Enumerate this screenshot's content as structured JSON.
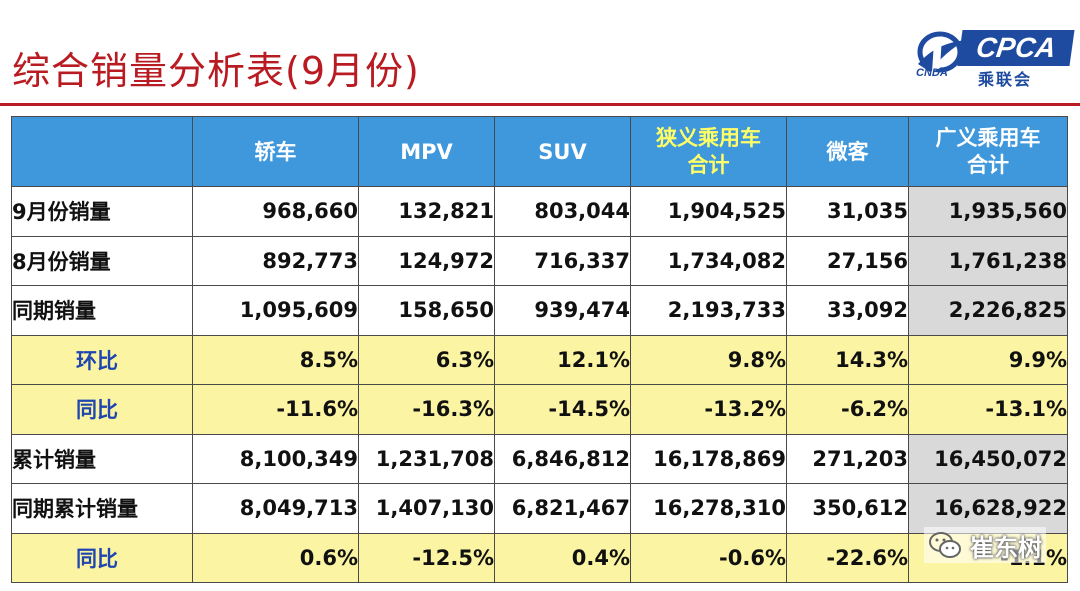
{
  "title": "综合销量分析表(9月份)",
  "logo": {
    "brand": "CPCA",
    "chinese": "乘联会",
    "emblem_text": "CNDA",
    "emblem_icon": "wing-emblem-icon"
  },
  "colors": {
    "title": "#b81c22",
    "header_bg": "#3f97dc",
    "header_highlight": "#ffff66",
    "ratio_row_bg": "#fbf4a2",
    "ratio_label": "#1f45b0",
    "grey_col": "#d9d9d9",
    "logo_blue": "#1e4aa0"
  },
  "table": {
    "headers": [
      "",
      "轿车",
      "MPV",
      "SUV",
      "狭义乘用车\n合计",
      "微客",
      "广义乘用车\n合计"
    ],
    "rows": [
      {
        "label": "9月份销量",
        "type": "volume",
        "values": [
          "968,660",
          "132,821",
          "803,044",
          "1,904,525",
          "31,035",
          "1,935,560"
        ]
      },
      {
        "label": "8月份销量",
        "type": "volume",
        "values": [
          "892,773",
          "124,972",
          "716,337",
          "1,734,082",
          "27,156",
          "1,761,238"
        ]
      },
      {
        "label": "同期销量",
        "type": "volume",
        "values": [
          "1,095,609",
          "158,650",
          "939,474",
          "2,193,733",
          "33,092",
          "2,226,825"
        ]
      },
      {
        "label": "环比",
        "type": "ratio",
        "values": [
          "8.5%",
          "6.3%",
          "12.1%",
          "9.8%",
          "14.3%",
          "9.9%"
        ]
      },
      {
        "label": "同比",
        "type": "ratio",
        "values": [
          "-11.6%",
          "-16.3%",
          "-14.5%",
          "-13.2%",
          "-6.2%",
          "-13.1%"
        ]
      },
      {
        "label": "累计销量",
        "type": "volume",
        "values": [
          "8,100,349",
          "1,231,708",
          "6,846,812",
          "16,178,869",
          "271,203",
          "16,450,072"
        ]
      },
      {
        "label": "同期累计销量",
        "type": "volume",
        "values": [
          "8,049,713",
          "1,407,130",
          "6,821,467",
          "16,278,310",
          "350,612",
          "16,628,922"
        ]
      },
      {
        "label": "同比",
        "type": "ratio",
        "values": [
          "0.6%",
          "-12.5%",
          "0.4%",
          "-0.6%",
          "-22.6%",
          "-1.1%"
        ]
      }
    ]
  },
  "watermark": {
    "text": "崔东树",
    "icon": "wechat-icon"
  }
}
